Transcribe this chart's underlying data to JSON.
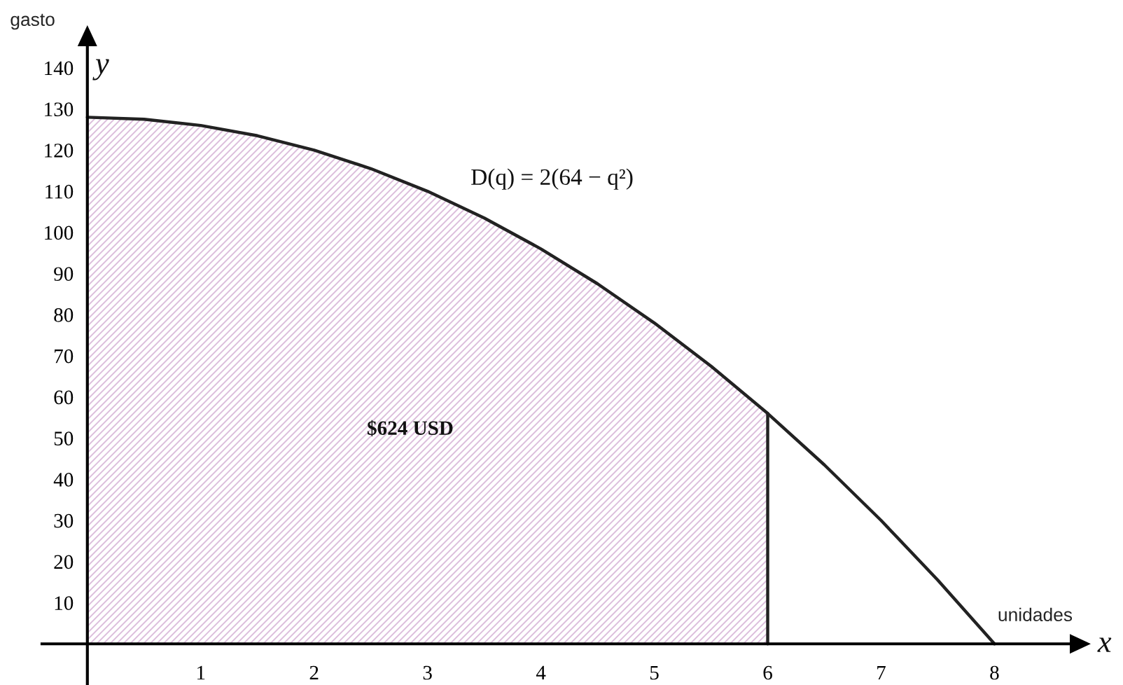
{
  "chart_data": {
    "type": "line",
    "xlabel": "unidades",
    "ylabel": "gasto",
    "annotations": [
      "$624 USD",
      "y",
      "x"
    ],
    "series": [
      {
        "type": "area",
        "color": "#dcbedc",
        "x": [
          0,
          0.5,
          1,
          1.5,
          2,
          2.5,
          3,
          3.5,
          4,
          4.5,
          5,
          5.5,
          6
        ],
        "values": [
          128,
          127.5,
          126,
          123.5,
          120,
          115.5,
          110,
          103.5,
          96,
          87.5,
          78,
          67.5,
          56
        ]
      },
      {
        "name": "D(q) = 2(64 − q²)",
        "color": "#222222",
        "x": [
          0,
          0.5,
          1,
          1.5,
          2,
          2.5,
          3,
          3.5,
          4,
          4.5,
          5,
          5.5,
          6,
          6.5,
          7,
          7.5,
          8
        ],
        "values": [
          128,
          127.5,
          126,
          123.5,
          120,
          115.5,
          110,
          103.5,
          96,
          87.5,
          78,
          67.5,
          56,
          43.5,
          30,
          15.5,
          0
        ]
      },
      {
        "color": "#222222",
        "x": [
          6,
          6
        ],
        "values": [
          0,
          56
        ]
      }
    ],
    "xlim": [
      -0.4,
      8.8
    ],
    "ylim": [
      -10,
      149
    ],
    "xticks": [
      1,
      2,
      3,
      4,
      5,
      6,
      7,
      8
    ],
    "yticks": [
      10,
      20,
      30,
      40,
      50,
      60,
      70,
      80,
      90,
      100,
      110,
      120,
      130,
      140
    ]
  }
}
